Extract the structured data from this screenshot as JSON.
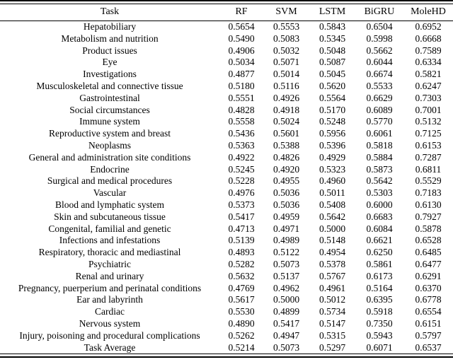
{
  "colors": {
    "text": "#000000",
    "background": "#ffffff",
    "rule": "#000000"
  },
  "chart_data": {
    "type": "table",
    "columns": [
      "Task",
      "RF",
      "SVM",
      "LSTM",
      "BiGRU",
      "MoleHD"
    ],
    "rows": [
      [
        "Hepatobiliary",
        "0.5654",
        "0.5553",
        "0.5843",
        "0.6504",
        "0.6952"
      ],
      [
        "Metabolism and nutrition",
        "0.5490",
        "0.5083",
        "0.5345",
        "0.5998",
        "0.6668"
      ],
      [
        "Product issues",
        "0.4906",
        "0.5032",
        "0.5048",
        "0.5662",
        "0.7589"
      ],
      [
        "Eye",
        "0.5034",
        "0.5071",
        "0.5087",
        "0.6044",
        "0.6334"
      ],
      [
        "Investigations",
        "0.4877",
        "0.5014",
        "0.5045",
        "0.6674",
        "0.5821"
      ],
      [
        "Musculoskeletal and connective tissue",
        "0.5180",
        "0.5116",
        "0.5620",
        "0.5533",
        "0.6247"
      ],
      [
        "Gastrointestinal",
        "0.5551",
        "0.4926",
        "0.5564",
        "0.6629",
        "0.7303"
      ],
      [
        "Social circumstances",
        "0.4828",
        "0.4918",
        "0.5170",
        "0.6089",
        "0.7001"
      ],
      [
        "Immune system",
        "0.5558",
        "0.5024",
        "0.5248",
        "0.5770",
        "0.5132"
      ],
      [
        "Reproductive system and breast",
        "0.5436",
        "0.5601",
        "0.5956",
        "0.6061",
        "0.7125"
      ],
      [
        "Neoplasms",
        "0.5363",
        "0.5388",
        "0.5396",
        "0.5818",
        "0.6153"
      ],
      [
        "General and administration site conditions",
        "0.4922",
        "0.4826",
        "0.4929",
        "0.5884",
        "0.7287"
      ],
      [
        "Endocrine",
        "0.5245",
        "0.4920",
        "0.5323",
        "0.5873",
        "0.6811"
      ],
      [
        "Surgical and medical procedures",
        "0.5228",
        "0.4955",
        "0.4960",
        "0.5642",
        "0.5529"
      ],
      [
        "Vascular",
        "0.4976",
        "0.5036",
        "0.5011",
        "0.5303",
        "0.7183"
      ],
      [
        "Blood and lymphatic system",
        "0.5373",
        "0.5036",
        "0.5408",
        "0.6000",
        "0.6130"
      ],
      [
        "Skin and subcutaneous tissue",
        "0.5417",
        "0.4959",
        "0.5642",
        "0.6683",
        "0.7927"
      ],
      [
        "Congenital, familial and genetic",
        "0.4713",
        "0.4971",
        "0.5000",
        "0.6084",
        "0.5878"
      ],
      [
        "Infections and infestations",
        "0.5139",
        "0.4989",
        "0.5148",
        "0.6621",
        "0.6528"
      ],
      [
        "Respiratory, thoracic and mediastinal",
        "0.4893",
        "0.5122",
        "0.4954",
        "0.6250",
        "0.6485"
      ],
      [
        "Psychiatric",
        "0.5282",
        "0.5073",
        "0.5378",
        "0.5861",
        "0.6477"
      ],
      [
        "Renal and urinary",
        "0.5632",
        "0.5137",
        "0.5767",
        "0.6173",
        "0.6291"
      ],
      [
        "Pregnancy, puerperium and perinatal conditions",
        "0.4769",
        "0.4962",
        "0.4961",
        "0.5164",
        "0.6370"
      ],
      [
        "Ear and labyrinth",
        "0.5617",
        "0.5000",
        "0.5012",
        "0.6395",
        "0.6778"
      ],
      [
        "Cardiac",
        "0.5530",
        "0.4899",
        "0.5734",
        "0.5918",
        "0.6554"
      ],
      [
        "Nervous system",
        "0.4890",
        "0.5417",
        "0.5147",
        "0.7350",
        "0.6151"
      ],
      [
        "Injury, poisoning and procedural complications",
        "0.5262",
        "0.4947",
        "0.5315",
        "0.5943",
        "0.5797"
      ],
      [
        "Task Average",
        "0.5214",
        "0.5073",
        "0.5297",
        "0.6071",
        "0.6537"
      ]
    ]
  }
}
